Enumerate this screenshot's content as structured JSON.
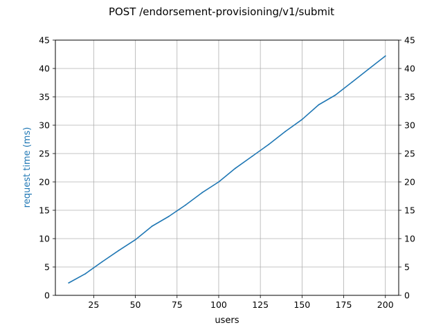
{
  "chart_data": {
    "type": "line",
    "title": "POST /endorsement-provisioning/v1/submit",
    "xlabel": "users",
    "ylabel": "request time (ms)",
    "xlim": [
      2,
      208
    ],
    "ylim": [
      0,
      45
    ],
    "x_ticks": [
      25,
      50,
      75,
      100,
      125,
      150,
      175,
      200
    ],
    "y_ticks": [
      0,
      5,
      10,
      15,
      20,
      25,
      30,
      35,
      40,
      45
    ],
    "right_axis_ticks": [
      0,
      5,
      10,
      15,
      20,
      25,
      30,
      35,
      40,
      45
    ],
    "grid": true,
    "legend": "none",
    "colors": {
      "series": "#1f77b4",
      "ylabel": "#1f77b4",
      "grid": "#b0b0b0",
      "axes": "#000000"
    },
    "series": [
      {
        "x": [
          10,
          20,
          30,
          40,
          50,
          60,
          70,
          80,
          90,
          100,
          110,
          120,
          130,
          140,
          150,
          160,
          170,
          180,
          190,
          200
        ],
        "values": [
          2.2,
          3.8,
          5.9,
          7.9,
          9.8,
          12.2,
          13.9,
          15.9,
          18.1,
          20.0,
          22.4,
          24.5,
          26.6,
          28.9,
          31.0,
          33.6,
          35.3,
          37.6,
          39.9,
          42.2
        ]
      }
    ]
  }
}
